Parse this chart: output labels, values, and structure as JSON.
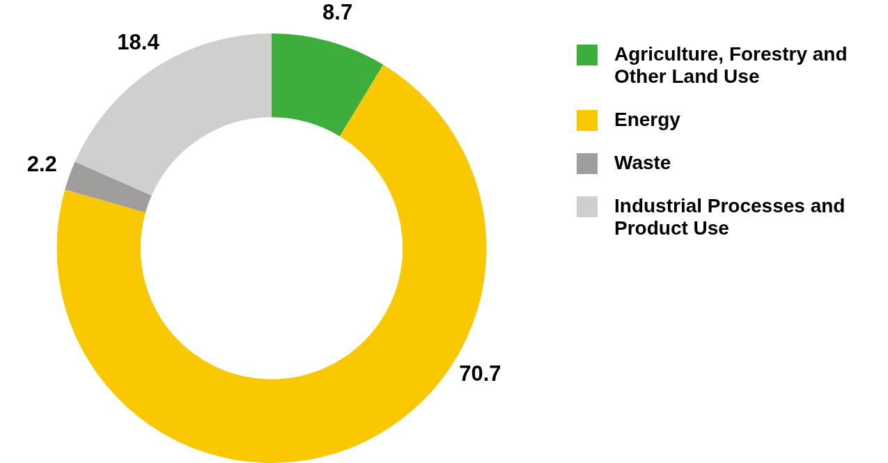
{
  "chart_data": {
    "type": "donut",
    "categories": [
      "Agriculture, Forestry and Other Land Use",
      "Energy",
      "Waste",
      "Industrial Processes and Product Use"
    ],
    "values": [
      8.7,
      70.7,
      2.2,
      18.4
    ],
    "colors": [
      "#3dae3b",
      "#fac800",
      "#a09e9d",
      "#cfcfcd"
    ],
    "data_labels": true,
    "legend": "top right"
  }
}
